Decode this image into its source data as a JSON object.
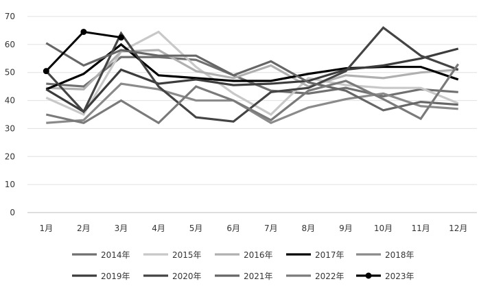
{
  "chart_data": {
    "type": "line",
    "title": "",
    "xlabel": "",
    "ylabel": "",
    "ylim": [
      0,
      70
    ],
    "yticks": [
      0,
      10,
      20,
      30,
      40,
      50,
      60,
      70
    ],
    "grid": "horizontal",
    "legend_position": "bottom",
    "categories": [
      "1月",
      "2月",
      "3月",
      "4月",
      "5月",
      "6月",
      "7月",
      "8月",
      "9月",
      "10月",
      "11月",
      "12月"
    ],
    "series": [
      {
        "name": "2014年",
        "color": "#707070",
        "marker": false,
        "values": [
          46,
          45,
          55.5,
          55.5,
          54.5,
          49,
          43.5,
          42.5,
          44.5,
          41.5,
          44,
          43
        ]
      },
      {
        "name": "2015年",
        "color": "#c8c8c8",
        "marker": false,
        "values": [
          41,
          35,
          57.5,
          64.5,
          52,
          42.5,
          35,
          48,
          45.5,
          44.5,
          44.5,
          39
        ]
      },
      {
        "name": "2016年",
        "color": "#b0b0b0",
        "marker": false,
        "values": [
          44.5,
          44,
          57.5,
          58,
          50.5,
          48,
          52.5,
          45,
          49,
          48,
          50,
          51
        ]
      },
      {
        "name": "2017年",
        "color": "#000000",
        "marker": false,
        "values": [
          44,
          49.5,
          60,
          49,
          48,
          47,
          47,
          49.5,
          51.5,
          52,
          52,
          47.5
        ]
      },
      {
        "name": "2018年",
        "color": "#8a8a8a",
        "marker": false,
        "values": [
          32,
          33,
          46,
          44,
          40,
          40,
          32,
          37.5,
          40.5,
          42.5,
          38,
          37
        ]
      },
      {
        "name": "2019年",
        "color": "#3c3c3c",
        "marker": false,
        "values": [
          44,
          36,
          51,
          46,
          47.5,
          45.5,
          46,
          47,
          51,
          52.5,
          55,
          58.5
        ]
      },
      {
        "name": "2020年",
        "color": "#444444",
        "marker": false,
        "values": [
          50.5,
          36,
          64,
          45,
          34,
          32.5,
          43,
          44.5,
          50.5,
          66,
          56,
          51
        ]
      },
      {
        "name": "2021年",
        "color": "#666666",
        "marker": false,
        "values": [
          60.5,
          52.5,
          58,
          56,
          56,
          49,
          54,
          46.5,
          43.5,
          36.5,
          39.5,
          38.5
        ]
      },
      {
        "name": "2022年",
        "color": "#7a7a7a",
        "marker": false,
        "values": [
          35,
          32,
          40,
          32,
          45,
          40,
          33,
          43.5,
          47,
          40.5,
          33.5,
          53
        ]
      },
      {
        "name": "2023年",
        "color": "#000000",
        "marker": true,
        "values": [
          50.5,
          64.5,
          62.5,
          null,
          null,
          null,
          null,
          null,
          null,
          null,
          null,
          null
        ]
      }
    ]
  }
}
